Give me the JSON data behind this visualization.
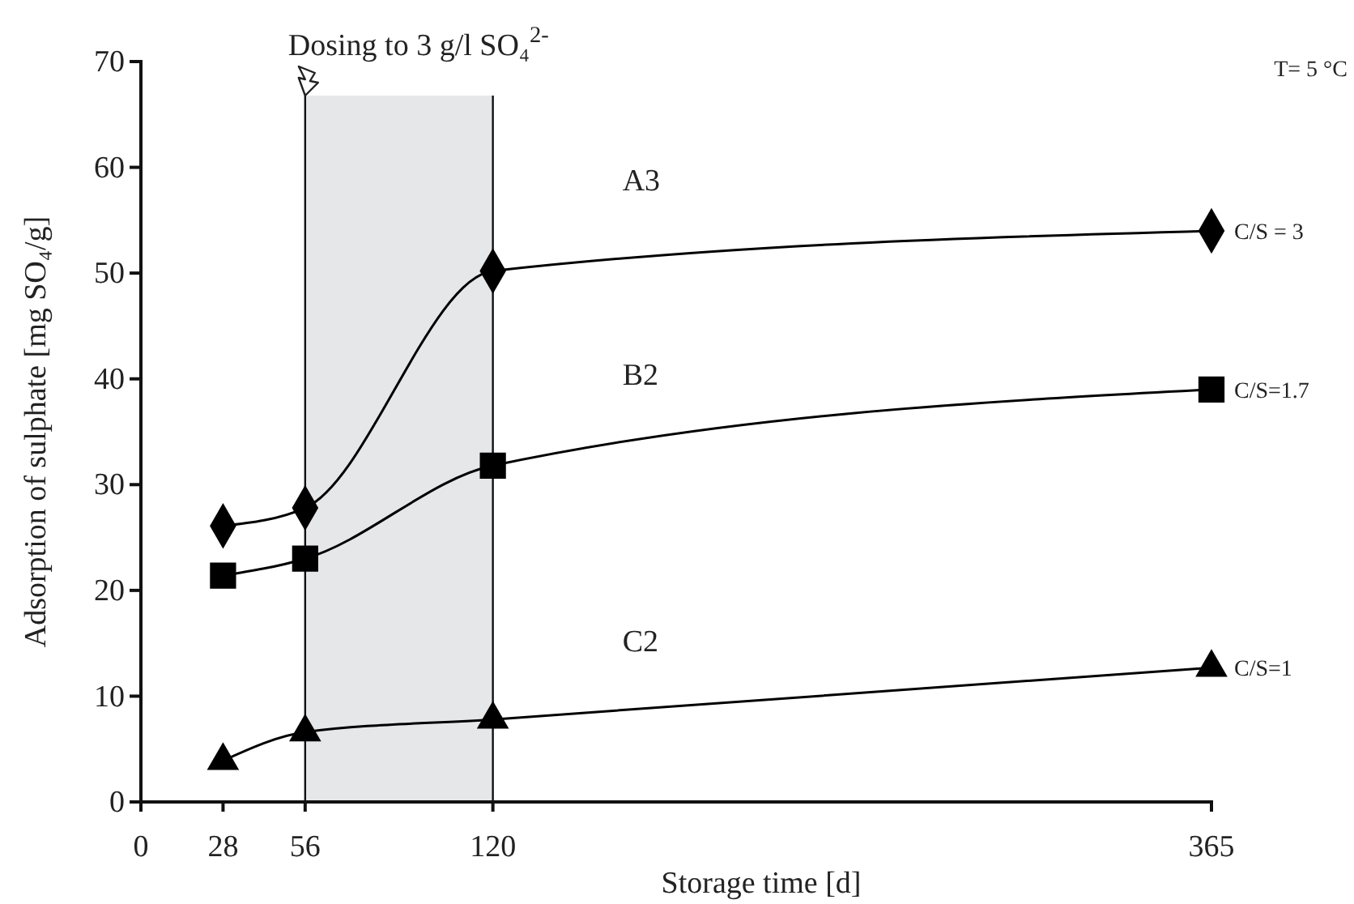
{
  "chart_data": {
    "type": "line",
    "xlabel": "Storage time [d]",
    "ylabel": "Adsorption of sulphate [mg SO₄/g]",
    "x": [
      28,
      56,
      120,
      365
    ],
    "series": [
      {
        "name": "A3",
        "color": "#000000",
        "marker": "diamond",
        "values": [
          26.1,
          27.8,
          50.2,
          54.0
        ]
      },
      {
        "name": "B2",
        "color": "#000000",
        "marker": "square",
        "values": [
          21.4,
          23.0,
          31.8,
          39.0
        ]
      },
      {
        "name": "C2",
        "color": "#000000",
        "marker": "triangle",
        "values": [
          3.9,
          6.6,
          7.8,
          12.7
        ]
      }
    ],
    "xlim": [
      0,
      365
    ],
    "xticks": [
      0,
      28,
      56,
      120,
      365
    ],
    "ylim": [
      0,
      70
    ],
    "yticks": [
      0,
      10,
      20,
      30,
      40,
      50,
      60,
      70
    ],
    "bands": [
      {
        "axis": "x",
        "from": 56,
        "to": 120,
        "color": "#e6e7e9"
      }
    ],
    "annotations": [
      "Dosing to 3 g/l SO₄$^{2-}$",
      "T= 5 °C",
      "C/S = 3",
      "C/S=1.7",
      "C/S=1"
    ],
    "line_style": "solid"
  }
}
